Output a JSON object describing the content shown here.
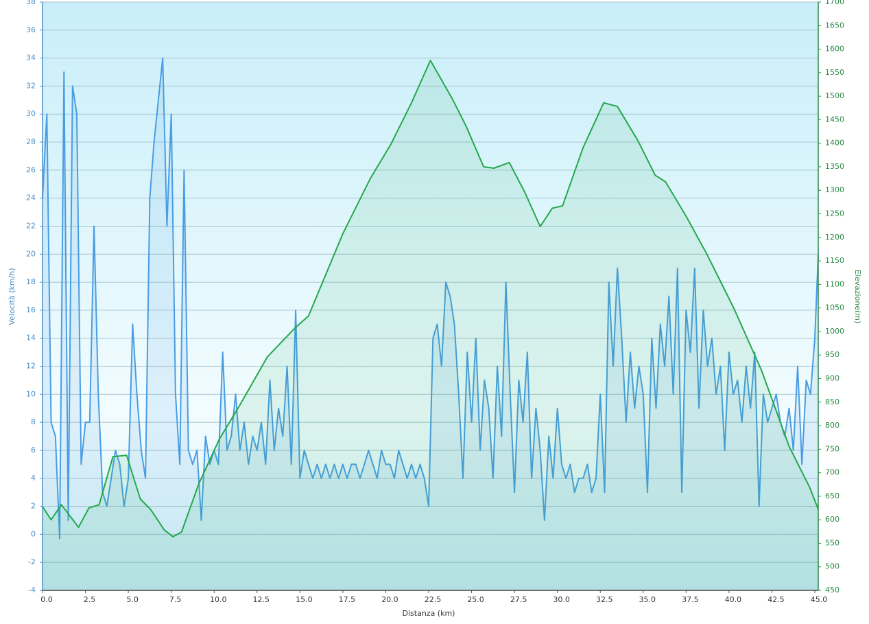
{
  "chart_data": {
    "type": "line",
    "xlabel": "Distanza  (km)",
    "ylabel": "Velocità (km/h)",
    "y2label": "Elevazione(m)",
    "xlim": [
      0,
      45.2
    ],
    "ylim": [
      -4,
      38
    ],
    "y2lim": [
      450,
      1700
    ],
    "grid": true,
    "xticks": [
      {
        "value": 0,
        "label": "0.0"
      },
      2.5,
      {
        "value": 5,
        "label": "5.0"
      },
      7.5,
      {
        "value": 10,
        "label": "10.0"
      },
      12.5,
      {
        "value": 15,
        "label": "15.0"
      },
      17.5,
      {
        "value": 20,
        "label": "20.0"
      },
      22.5,
      {
        "value": 25,
        "label": "25.0"
      },
      27.5,
      {
        "value": 30,
        "label": "30.0"
      },
      32.5,
      {
        "value": 35,
        "label": "35.0"
      },
      37.5,
      {
        "value": 40,
        "label": "40.0"
      },
      42.5,
      {
        "value": 45,
        "label": "45.0"
      }
    ],
    "yticks": [
      -4,
      -2,
      0,
      2,
      4,
      6,
      8,
      10,
      12,
      14,
      16,
      18,
      20,
      22,
      24,
      26,
      28,
      30,
      32,
      34,
      36,
      38
    ],
    "y2ticks": [
      450,
      500,
      550,
      600,
      650,
      700,
      750,
      800,
      850,
      900,
      950,
      1000,
      1050,
      1100,
      1150,
      1200,
      1250,
      1300,
      1350,
      1400,
      1450,
      1500,
      1550,
      1600,
      1650,
      1700
    ],
    "series": [
      {
        "name": "Velocità",
        "color": "#4a9de2",
        "axis": "y",
        "x": [
          0,
          0.25,
          0.5,
          0.75,
          1,
          1.25,
          1.5,
          1.75,
          2,
          2.25,
          2.5,
          2.75,
          3,
          3.25,
          3.5,
          3.75,
          4,
          4.25,
          4.5,
          4.75,
          5,
          5.25,
          5.5,
          5.75,
          6,
          6.25,
          6.5,
          6.75,
          7,
          7.25,
          7.5,
          7.75,
          8,
          8.25,
          8.5,
          8.75,
          9,
          9.25,
          9.5,
          9.75,
          10,
          10.25,
          10.5,
          10.75,
          11,
          11.25,
          11.5,
          11.75,
          12,
          12.25,
          12.5,
          12.75,
          13,
          13.25,
          13.5,
          13.75,
          14,
          14.25,
          14.5,
          14.75,
          15,
          15.25,
          15.5,
          15.75,
          16,
          16.25,
          16.5,
          16.75,
          17,
          17.25,
          17.5,
          17.75,
          18,
          18.25,
          18.5,
          18.75,
          19,
          19.25,
          19.5,
          19.75,
          20,
          20.25,
          20.5,
          20.75,
          21,
          21.25,
          21.5,
          21.75,
          22,
          22.25,
          22.5,
          22.75,
          23,
          23.25,
          23.5,
          23.75,
          24,
          24.25,
          24.5,
          24.75,
          25,
          25.25,
          25.5,
          25.75,
          26,
          26.25,
          26.5,
          26.75,
          27,
          27.25,
          27.5,
          27.75,
          28,
          28.25,
          28.5,
          28.75,
          29,
          29.25,
          29.5,
          29.75,
          30,
          30.25,
          30.5,
          30.75,
          31,
          31.25,
          31.5,
          31.75,
          32,
          32.25,
          32.5,
          32.75,
          33,
          33.25,
          33.5,
          33.75,
          34,
          34.25,
          34.5,
          34.75,
          35,
          35.25,
          35.5,
          35.75,
          36,
          36.25,
          36.5,
          36.75,
          37,
          37.25,
          37.5,
          37.75,
          38,
          38.25,
          38.5,
          38.75,
          39,
          39.25,
          39.5,
          39.75,
          40,
          40.25,
          40.5,
          40.75,
          41,
          41.25,
          41.5,
          41.75,
          42,
          42.25,
          42.5,
          42.75,
          43,
          43.25,
          43.5,
          43.75,
          44,
          44.25,
          44.5,
          44.75,
          45,
          45.2
        ],
        "values": [
          24,
          30,
          8,
          7,
          -0.3,
          33,
          1,
          32,
          30,
          5,
          8,
          8,
          22,
          10,
          3,
          2,
          4,
          6,
          5,
          2,
          4,
          15,
          10,
          6,
          4,
          24,
          28,
          31,
          34,
          22,
          30,
          10,
          5,
          26,
          6,
          5,
          6,
          1,
          7,
          5,
          6,
          5,
          13,
          6,
          7,
          10,
          6,
          8,
          5,
          7,
          6,
          8,
          5,
          11,
          6,
          9,
          7,
          12,
          5,
          16,
          4,
          6,
          5,
          4,
          5,
          4,
          5,
          4,
          5,
          4,
          5,
          4,
          5,
          5,
          4,
          5,
          6,
          5,
          4,
          6,
          5,
          5,
          4,
          6,
          5,
          4,
          5,
          4,
          5,
          4,
          2,
          14,
          15,
          12,
          18,
          17,
          15,
          10,
          4,
          13,
          8,
          14,
          6,
          11,
          9,
          4,
          12,
          7,
          18,
          10,
          3,
          11,
          8,
          13,
          4,
          9,
          6,
          1,
          7,
          4,
          9,
          5,
          4,
          5,
          3,
          4,
          4,
          5,
          3,
          4,
          10,
          3,
          18,
          12,
          19,
          14,
          8,
          13,
          9,
          12,
          10,
          3,
          14,
          9,
          15,
          12,
          17,
          10,
          19,
          3,
          16,
          13,
          19,
          9,
          16,
          12,
          14,
          10,
          12,
          6,
          13,
          10,
          11,
          8,
          12,
          9,
          13,
          2,
          10,
          8,
          9,
          10,
          8,
          7,
          9,
          6,
          12,
          5,
          11,
          10,
          14,
          20
        ]
      },
      {
        "name": "Elevazione",
        "color": "#22a84a",
        "axis": "y2",
        "x": [
          0,
          0.5,
          1.1,
          2.1,
          2.7,
          3.3,
          4.1,
          4.9,
          5.7,
          6.3,
          7.1,
          7.6,
          8.1,
          9.1,
          10.3,
          11.5,
          13.1,
          14.7,
          15.5,
          17.5,
          19.1,
          20.3,
          21.5,
          22.6,
          23.9,
          24.7,
          25.7,
          26.3,
          27.2,
          28.1,
          29,
          29.7,
          30.3,
          31.5,
          32.7,
          33.5,
          34.7,
          35.7,
          36.3,
          37.5,
          38.7,
          40.3,
          41.9,
          43.5,
          44.7,
          45.2
        ],
        "values": [
          628,
          600,
          632,
          584,
          625,
          632,
          734,
          737,
          644,
          622,
          578,
          564,
          574,
          676,
          771,
          844,
          946,
          1007,
          1033,
          1208,
          1325,
          1398,
          1486,
          1576,
          1493,
          1435,
          1350,
          1347,
          1359,
          1296,
          1223,
          1262,
          1267,
          1391,
          1486,
          1478,
          1405,
          1332,
          1318,
          1245,
          1165,
          1048,
          917,
          756,
          669,
          622
        ]
      }
    ]
  }
}
